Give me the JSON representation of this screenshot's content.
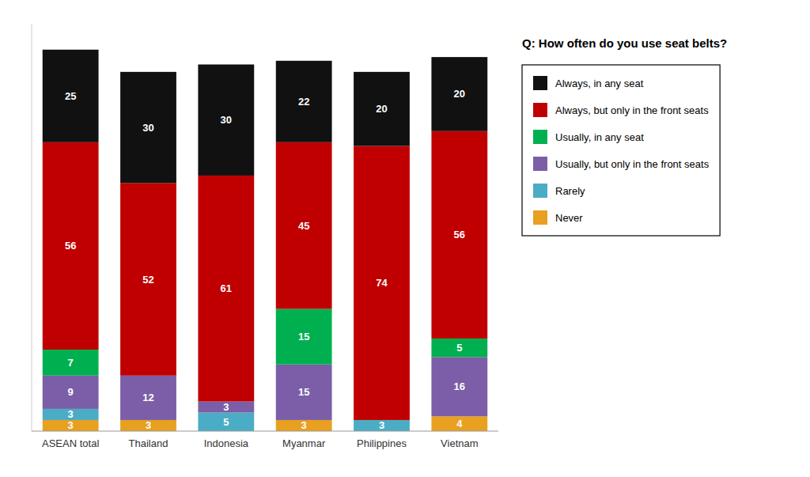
{
  "chart_data": {
    "type": "bar",
    "stacked": true,
    "data_labels": true,
    "tick_labels": "x",
    "grid": false,
    "legend": "right",
    "annotations": [
      "Q: How often do you use seat belts?"
    ],
    "categories": [
      "ASEAN total",
      "Thailand",
      "Indonesia",
      "Myanmar",
      "Philippines",
      "Vietnam"
    ],
    "series": [
      {
        "name": "Never",
        "color": "#E8A020",
        "values": [
          3,
          3,
          0,
          3,
          0,
          4
        ]
      },
      {
        "name": "Rarely",
        "color": "#4BACC6",
        "values": [
          3,
          0,
          5,
          0,
          3,
          0
        ]
      },
      {
        "name": "Usually, but only in the front seats",
        "color": "#7B5EA7",
        "values": [
          9,
          12,
          3,
          15,
          0,
          16
        ]
      },
      {
        "name": "Usually, in any seat",
        "color": "#00B050",
        "values": [
          7,
          0,
          0,
          15,
          0,
          5
        ]
      },
      {
        "name": "Always, but only in the front seats",
        "color": "#C00000",
        "values": [
          56,
          52,
          61,
          45,
          74,
          56
        ]
      },
      {
        "name": "Always, in any seat",
        "color": "#111111",
        "values": [
          25,
          30,
          30,
          22,
          20,
          20
        ]
      }
    ],
    "ylim": [
      0,
      110
    ],
    "yticks": []
  }
}
